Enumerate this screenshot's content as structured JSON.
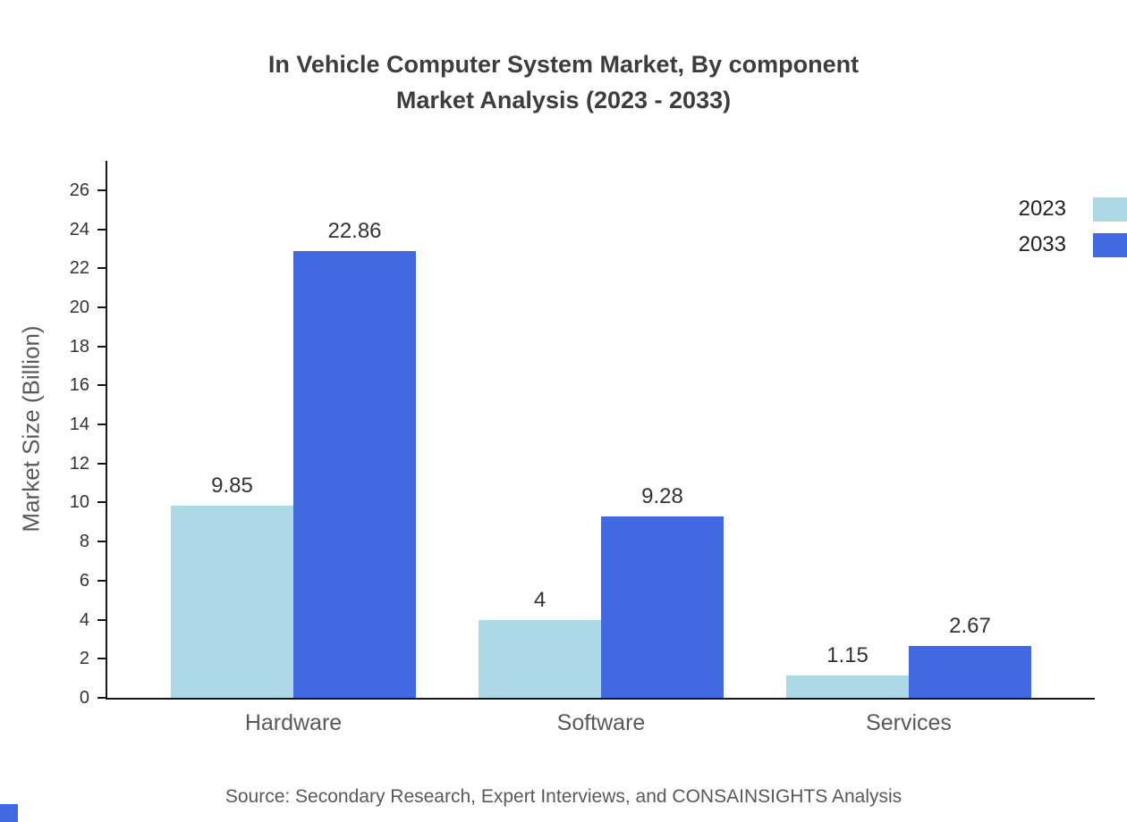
{
  "source": "Source: Secondary Research, Expert Interviews, and CONSAINSIGHTS Analysis",
  "colors": {
    "axis": "#161616",
    "light_blue": "#add8e6",
    "royal_blue": "#4169e1"
  },
  "chart_data": {
    "type": "bar",
    "title": "In Vehicle Computer System Market, By component Market Analysis (2023 - 2033)",
    "title_lines": [
      "In Vehicle Computer System Market, By component",
      "Market Analysis (2023 - 2033)"
    ],
    "categories": [
      "Hardware",
      "Software",
      "Services"
    ],
    "series": [
      {
        "name": "2023",
        "color": "#add8e6",
        "values": [
          9.85,
          4,
          1.15
        ]
      },
      {
        "name": "2033",
        "color": "#4169e1",
        "values": [
          22.86,
          9.28,
          2.67
        ]
      }
    ],
    "xlabel": "",
    "ylabel": "Market Size (Billion)",
    "ylim": [
      0,
      26
    ],
    "ytick_step": 2,
    "grid": false,
    "legend_position": "top-right"
  }
}
